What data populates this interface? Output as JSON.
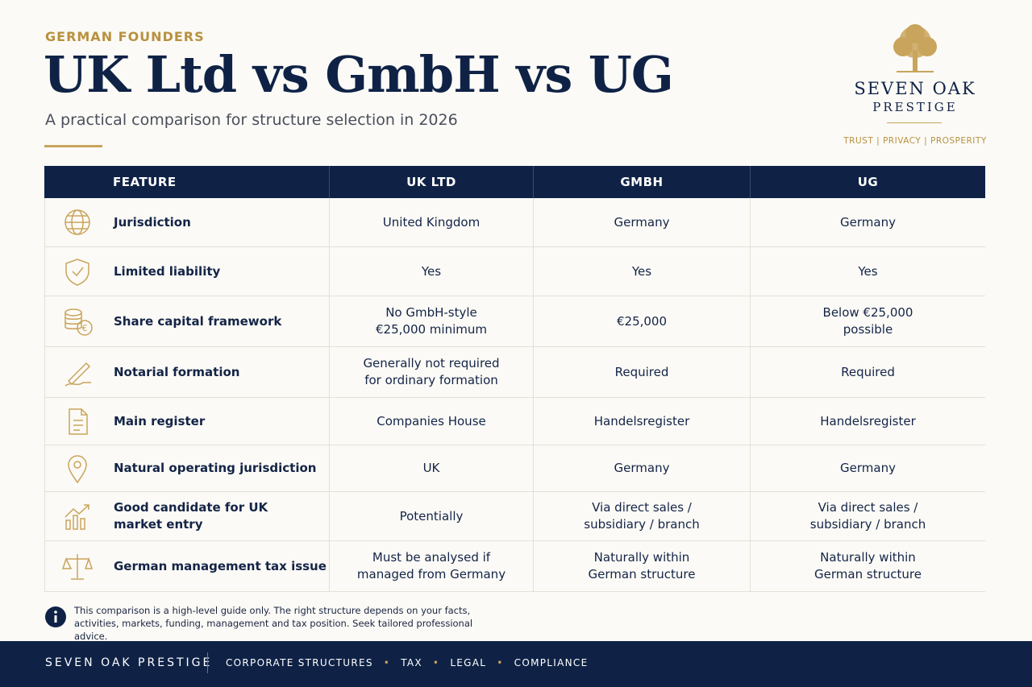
{
  "header": {
    "eyebrow": "GERMAN FOUNDERS",
    "title": "UK Ltd vs GmbH vs UG",
    "subtitle": "A practical comparison for structure selection in 2026"
  },
  "brand": {
    "name_line1": "SEVEN OAK",
    "name_line2": "PRESTIGE",
    "tagline": [
      "TRUST",
      "PRIVACY",
      "PROSPERITY"
    ]
  },
  "table": {
    "columns": [
      "FEATURE",
      "UK LTD",
      "GMBH",
      "UG"
    ],
    "rows": [
      [
        "Jurisdiction",
        "United Kingdom",
        "Germany",
        "Germany"
      ],
      [
        "Limited liability",
        "Yes",
        "Yes",
        "Yes"
      ],
      [
        "Share capital framework",
        "No GmbH-style\n€25,000 minimum",
        "€25,000",
        "Below €25,000\npossible"
      ],
      [
        "Notarial formation",
        "Generally not required\nfor ordinary formation",
        "Required",
        "Required"
      ],
      [
        "Main register",
        "Companies House",
        "Handelsregister",
        "Handelsregister"
      ],
      [
        "Natural operating jurisdiction",
        "UK",
        "Germany",
        "Germany"
      ],
      [
        "Good candidate for UK\nmarket entry",
        "Potentially",
        "Via direct sales /\nsubsidiary / branch",
        "Via direct sales /\nsubsidiary / branch"
      ],
      [
        "German management tax issue",
        "Must be analysed if\nmanaged from Germany",
        "Naturally within\nGerman structure",
        "Naturally within\nGerman structure"
      ]
    ]
  },
  "note": "This comparison is a high-level guide only. The right structure depends on your facts, activities, markets, funding, management and tax position. Seek tailored professional advice.",
  "footer": {
    "brand": "SEVEN OAK PRESTIGE",
    "items": [
      "CORPORATE STRUCTURES",
      "TAX",
      "LEGAL",
      "COMPLIANCE"
    ]
  }
}
